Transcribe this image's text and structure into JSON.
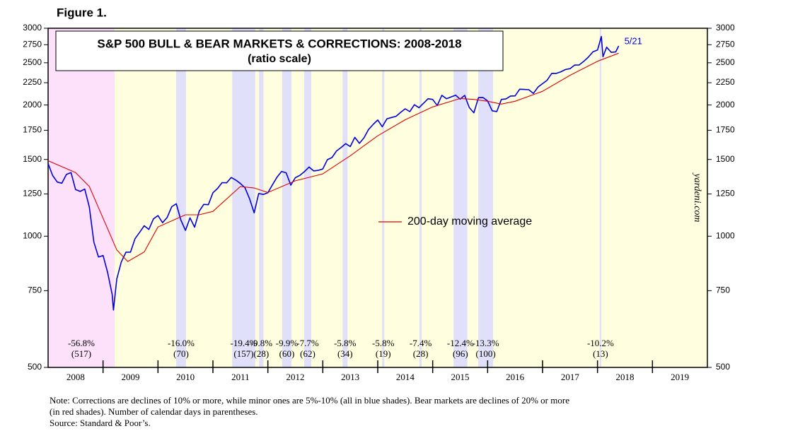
{
  "figure_label": "Figure 1.",
  "chart_data": {
    "type": "line",
    "title": "S&P 500 BULL & BEAR MARKETS & CORRECTIONS: 2008-2018",
    "subtitle": "(ratio scale)",
    "log_scale": true,
    "xlim": [
      2008,
      2020
    ],
    "ylim": [
      500,
      3000
    ],
    "yticks": [
      500,
      750,
      1000,
      1250,
      1500,
      1750,
      2000,
      2250,
      2500,
      2750,
      3000
    ],
    "y2lim": [
      500,
      3000
    ],
    "y2ticks": [
      500,
      750,
      1000,
      1250,
      1500,
      1750,
      2000,
      2250,
      2500,
      2750,
      3000
    ],
    "categories": [
      "2008",
      "2009",
      "2010",
      "2011",
      "2012",
      "2013",
      "2014",
      "2015",
      "2016",
      "2017",
      "2018",
      "2019"
    ],
    "background_color": "#ffffe0",
    "series": [
      {
        "name": "S&P 500",
        "color": "#0000dd",
        "x": [
          2008,
          2008.083,
          2008.167,
          2008.25,
          2008.333,
          2008.417,
          2008.5,
          2008.583,
          2008.667,
          2008.75,
          2008.833,
          2008.917,
          2009,
          2009.083,
          2009.167,
          2009.19,
          2009.25,
          2009.333,
          2009.417,
          2009.5,
          2009.583,
          2009.667,
          2009.75,
          2009.833,
          2009.917,
          2010,
          2010.083,
          2010.167,
          2010.25,
          2010.333,
          2010.417,
          2010.5,
          2010.583,
          2010.667,
          2010.75,
          2010.833,
          2010.917,
          2011,
          2011.083,
          2011.167,
          2011.25,
          2011.333,
          2011.417,
          2011.5,
          2011.583,
          2011.667,
          2011.75,
          2011.833,
          2011.917,
          2012,
          2012.083,
          2012.167,
          2012.25,
          2012.333,
          2012.417,
          2012.5,
          2012.583,
          2012.667,
          2012.75,
          2012.833,
          2012.917,
          2013,
          2013.083,
          2013.167,
          2013.25,
          2013.333,
          2013.417,
          2013.5,
          2013.583,
          2013.667,
          2013.75,
          2013.833,
          2013.917,
          2014,
          2014.083,
          2014.167,
          2014.25,
          2014.333,
          2014.417,
          2014.5,
          2014.583,
          2014.667,
          2014.75,
          2014.833,
          2014.917,
          2015,
          2015.083,
          2015.167,
          2015.25,
          2015.333,
          2015.417,
          2015.5,
          2015.583,
          2015.667,
          2015.75,
          2015.833,
          2015.917,
          2016,
          2016.083,
          2016.167,
          2016.25,
          2016.333,
          2016.417,
          2016.5,
          2016.583,
          2016.667,
          2016.75,
          2016.833,
          2016.917,
          2017,
          2017.083,
          2017.167,
          2017.25,
          2017.333,
          2017.417,
          2017.5,
          2017.583,
          2017.667,
          2017.75,
          2017.833,
          2017.917,
          2018,
          2018.07,
          2018.1,
          2018.167,
          2018.25,
          2018.333,
          2018.385
        ],
        "values": [
          1468,
          1378,
          1331,
          1323,
          1386,
          1400,
          1280,
          1267,
          1283,
          1166,
          969,
          896,
          903,
          826,
          735,
          677,
          798,
          873,
          919,
          919,
          987,
          1021,
          1057,
          1036,
          1096,
          1115,
          1074,
          1104,
          1169,
          1187,
          1089,
          1031,
          1102,
          1049,
          1141,
          1183,
          1181,
          1258,
          1286,
          1327,
          1326,
          1364,
          1345,
          1321,
          1292,
          1219,
          1131,
          1253,
          1247,
          1258,
          1312,
          1366,
          1408,
          1398,
          1310,
          1362,
          1379,
          1407,
          1441,
          1412,
          1416,
          1426,
          1498,
          1515,
          1569,
          1598,
          1631,
          1606,
          1686,
          1633,
          1682,
          1757,
          1806,
          1848,
          1783,
          1859,
          1872,
          1884,
          1924,
          1960,
          1931,
          2003,
          1972,
          2018,
          2068,
          2059,
          1995,
          2105,
          2068,
          2086,
          2107,
          2063,
          2104,
          1972,
          1920,
          2079,
          2080,
          2044,
          1940,
          1932,
          2060,
          2065,
          2097,
          2099,
          2174,
          2171,
          2168,
          2126,
          2199,
          2239,
          2279,
          2364,
          2363,
          2384,
          2412,
          2423,
          2470,
          2472,
          2519,
          2575,
          2648,
          2674,
          2873,
          2581,
          2714,
          2641,
          2648,
          2733
        ]
      },
      {
        "name": "200-day moving average",
        "color": "#e00000",
        "x": [
          2008,
          2008.5,
          2008.75,
          2009,
          2009.25,
          2009.45,
          2009.75,
          2010,
          2010.5,
          2010.75,
          2011,
          2011.5,
          2011.75,
          2012,
          2012.5,
          2013,
          2013.5,
          2014,
          2014.5,
          2015,
          2015.5,
          2015.75,
          2016,
          2016.25,
          2016.5,
          2017,
          2017.5,
          2018,
          2018.385
        ],
        "values": [
          1490,
          1400,
          1300,
          1100,
          930,
          875,
          920,
          1050,
          1120,
          1120,
          1140,
          1300,
          1290,
          1260,
          1340,
          1390,
          1530,
          1700,
          1850,
          1980,
          2070,
          2060,
          2040,
          2010,
          2040,
          2150,
          2340,
          2520,
          2630
        ]
      }
    ],
    "end_label": "5/21",
    "regions": [
      {
        "kind": "bear",
        "color": "#fde0fa",
        "start": 2008,
        "end": 2009.21,
        "change": "-56.8%",
        "days": "(517)"
      },
      {
        "kind": "correction",
        "color": "#e0e0fa",
        "start": 2010.33,
        "end": 2010.51,
        "change": "-16.0%",
        "days": "(70)"
      },
      {
        "kind": "correction",
        "color": "#e0e0fa",
        "start": 2011.35,
        "end": 2011.77,
        "change": "-19.4%",
        "days": "(157)"
      },
      {
        "kind": "correction",
        "color": "#e0e0fa",
        "start": 2011.84,
        "end": 2011.92,
        "change": "-9.8%",
        "days": "(28)"
      },
      {
        "kind": "correction",
        "color": "#e0e0fa",
        "start": 2012.26,
        "end": 2012.43,
        "change": "-9.9%",
        "days": "(60)"
      },
      {
        "kind": "correction",
        "color": "#e0e0fa",
        "start": 2012.66,
        "end": 2012.79,
        "change": "-7.7%",
        "days": "(62)"
      },
      {
        "kind": "correction",
        "color": "#e0e0fa",
        "start": 2013.36,
        "end": 2013.45,
        "change": "-5.8%",
        "days": "(34)"
      },
      {
        "kind": "correction",
        "color": "#e0e0fa",
        "start": 2014.08,
        "end": 2014.12,
        "change": "-5.8%",
        "days": "(19)"
      },
      {
        "kind": "correction",
        "color": "#e0e0fa",
        "start": 2014.76,
        "end": 2014.8,
        "change": "-7.4%",
        "days": "(28)"
      },
      {
        "kind": "correction",
        "color": "#e0e0fa",
        "start": 2015.38,
        "end": 2015.63,
        "change": "-12.4%",
        "days": "(96)"
      },
      {
        "kind": "correction",
        "color": "#e0e0fa",
        "start": 2015.83,
        "end": 2016.1,
        "change": "-13.3%",
        "days": "(100)"
      },
      {
        "kind": "correction",
        "color": "#e0e0fa",
        "start": 2018.04,
        "end": 2018.07,
        "change": "-10.2%",
        "days": "(13)"
      }
    ],
    "watermark": "yardeni.com"
  },
  "notes": [
    "Note: Corrections are declines of 10% or more, while minor ones are 5%-10% (all in blue shades).  Bear markets are declines of 20% or more",
    "(in red shades). Number of calendar days in parentheses.",
    "Source: Standard & Poor’s."
  ]
}
